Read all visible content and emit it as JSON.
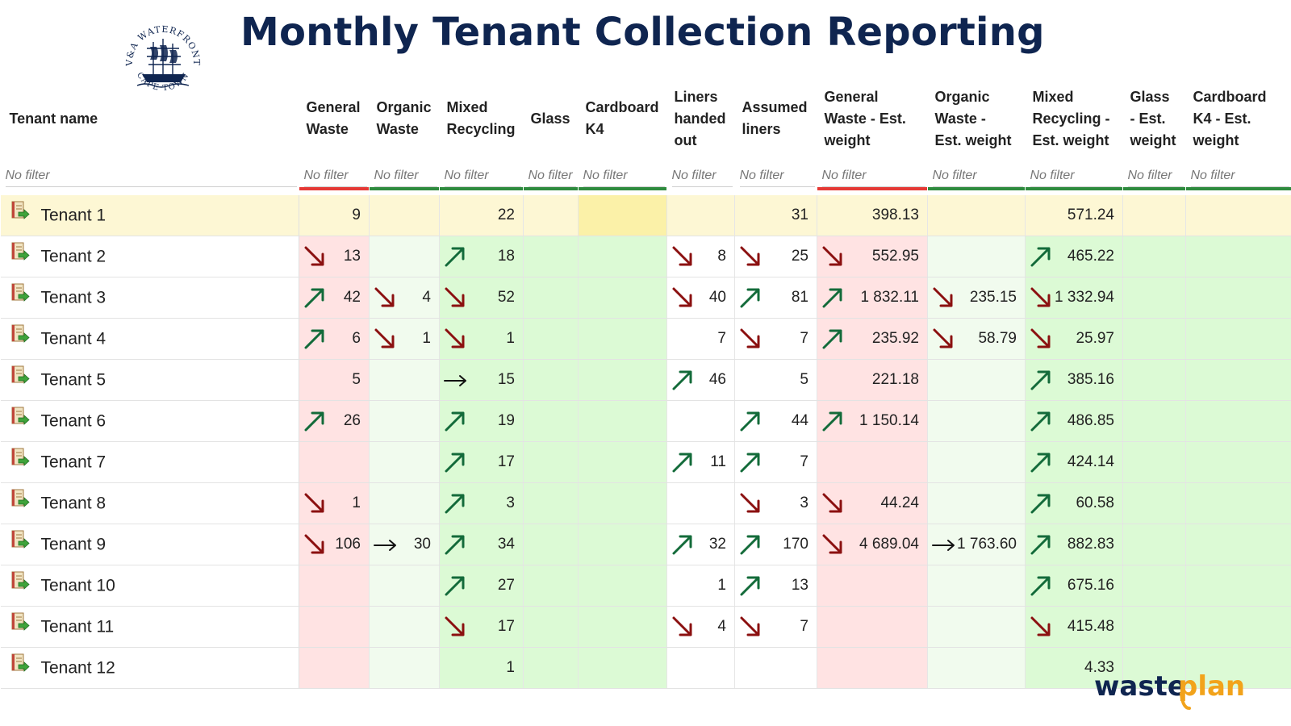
{
  "page": {
    "title": "Monthly Tenant Collection Reporting",
    "logo": {
      "text_top": "V&A WATERFRONT",
      "text_bottom": "CAPE TOWN",
      "icon": "ship-seal-icon",
      "color": "#0f2550"
    },
    "brand": {
      "part1": "waste",
      "part2": "plan",
      "color1": "#0f2550",
      "color2": "#f2a31b"
    }
  },
  "columns": [
    {
      "key": "name",
      "label": [
        "Tenant name"
      ],
      "placeholder": "No filter",
      "bar": "none",
      "bg": "white"
    },
    {
      "key": "gw",
      "label": [
        "General",
        "Waste"
      ],
      "placeholder": "No filter",
      "bar": "red",
      "bg": "red"
    },
    {
      "key": "ow",
      "label": [
        "Organic",
        "Waste"
      ],
      "placeholder": "No filter",
      "bar": "green",
      "bg": "lightgreen"
    },
    {
      "key": "mr",
      "label": [
        "Mixed",
        "Recycling"
      ],
      "placeholder": "No filter",
      "bar": "green",
      "bg": "green"
    },
    {
      "key": "gl",
      "label": [
        "Glass"
      ],
      "placeholder": "No filter",
      "bar": "green",
      "bg": "green"
    },
    {
      "key": "k4",
      "label": [
        "Cardboard",
        "K4"
      ],
      "placeholder": "No filter",
      "bar": "green",
      "bg": "green"
    },
    {
      "key": "lh",
      "label": [
        "Liners",
        "handed",
        "out"
      ],
      "placeholder": "No filter",
      "bar": "none",
      "bg": "white"
    },
    {
      "key": "al",
      "label": [
        "Assumed",
        "liners"
      ],
      "placeholder": "No filter",
      "bar": "none",
      "bg": "white"
    },
    {
      "key": "gwe",
      "label": [
        "General",
        "Waste - Est.",
        "weight"
      ],
      "placeholder": "No filter",
      "bar": "red",
      "bg": "red"
    },
    {
      "key": "owe",
      "label": [
        "Organic",
        "Waste -",
        "Est. weight"
      ],
      "placeholder": "No filter",
      "bar": "green",
      "bg": "lightgreen"
    },
    {
      "key": "mre",
      "label": [
        "Mixed",
        "Recycling -",
        "Est. weight"
      ],
      "placeholder": "No filter",
      "bar": "green",
      "bg": "green"
    },
    {
      "key": "gle",
      "label": [
        "Glass",
        "- Est.",
        "weight"
      ],
      "placeholder": "No filter",
      "bar": "green",
      "bg": "green"
    },
    {
      "key": "k4e",
      "label": [
        "Cardboard",
        "K4 - Est.",
        "weight"
      ],
      "placeholder": "No filter",
      "bar": "green",
      "bg": "green"
    }
  ],
  "rows": [
    {
      "name": "Tenant 1",
      "highlight": true,
      "cells": {
        "gw": {
          "v": "9"
        },
        "mr": {
          "v": "22"
        },
        "al": {
          "v": "31"
        },
        "gwe": {
          "v": "398.13"
        },
        "mre": {
          "v": "571.24"
        }
      }
    },
    {
      "name": "Tenant 2",
      "cells": {
        "gw": {
          "v": "13",
          "t": "down"
        },
        "mr": {
          "v": "18",
          "t": "up"
        },
        "lh": {
          "v": "8",
          "t": "down"
        },
        "al": {
          "v": "25",
          "t": "down"
        },
        "gwe": {
          "v": "552.95",
          "t": "down"
        },
        "mre": {
          "v": "465.22",
          "t": "up"
        }
      }
    },
    {
      "name": "Tenant 3",
      "cells": {
        "gw": {
          "v": "42",
          "t": "up"
        },
        "ow": {
          "v": "4",
          "t": "down"
        },
        "mr": {
          "v": "52",
          "t": "down"
        },
        "lh": {
          "v": "40",
          "t": "down"
        },
        "al": {
          "v": "81",
          "t": "up"
        },
        "gwe": {
          "v": "1 832.11",
          "t": "up"
        },
        "owe": {
          "v": "235.15",
          "t": "down"
        },
        "mre": {
          "v": "1 332.94",
          "t": "down"
        }
      }
    },
    {
      "name": "Tenant 4",
      "cells": {
        "gw": {
          "v": "6",
          "t": "up"
        },
        "ow": {
          "v": "1",
          "t": "down"
        },
        "mr": {
          "v": "1",
          "t": "down"
        },
        "lh": {
          "v": "7"
        },
        "al": {
          "v": "7",
          "t": "down"
        },
        "gwe": {
          "v": "235.92",
          "t": "up"
        },
        "owe": {
          "v": "58.79",
          "t": "down"
        },
        "mre": {
          "v": "25.97",
          "t": "down"
        }
      }
    },
    {
      "name": "Tenant 5",
      "cells": {
        "gw": {
          "v": "5"
        },
        "mr": {
          "v": "15",
          "t": "flat"
        },
        "lh": {
          "v": "46",
          "t": "up"
        },
        "al": {
          "v": "5"
        },
        "gwe": {
          "v": "221.18"
        },
        "mre": {
          "v": "385.16",
          "t": "up"
        }
      }
    },
    {
      "name": "Tenant 6",
      "cells": {
        "gw": {
          "v": "26",
          "t": "up"
        },
        "mr": {
          "v": "19",
          "t": "up"
        },
        "al": {
          "v": "44",
          "t": "up"
        },
        "gwe": {
          "v": "1 150.14",
          "t": "up"
        },
        "mre": {
          "v": "486.85",
          "t": "up"
        }
      }
    },
    {
      "name": "Tenant 7",
      "cells": {
        "mr": {
          "v": "17",
          "t": "up"
        },
        "lh": {
          "v": "11",
          "t": "up"
        },
        "al": {
          "v": "7",
          "t": "up"
        },
        "mre": {
          "v": "424.14",
          "t": "up"
        }
      }
    },
    {
      "name": "Tenant 8",
      "cells": {
        "gw": {
          "v": "1",
          "t": "down"
        },
        "mr": {
          "v": "3",
          "t": "up"
        },
        "al": {
          "v": "3",
          "t": "down"
        },
        "gwe": {
          "v": "44.24",
          "t": "down"
        },
        "mre": {
          "v": "60.58",
          "t": "up"
        }
      }
    },
    {
      "name": "Tenant 9",
      "cells": {
        "gw": {
          "v": "106",
          "t": "down"
        },
        "ow": {
          "v": "30",
          "t": "flat"
        },
        "mr": {
          "v": "34",
          "t": "up"
        },
        "lh": {
          "v": "32",
          "t": "up"
        },
        "al": {
          "v": "170",
          "t": "up"
        },
        "gwe": {
          "v": "4 689.04",
          "t": "down"
        },
        "owe": {
          "v": "1 763.60",
          "t": "flat"
        },
        "mre": {
          "v": "882.83",
          "t": "up"
        }
      }
    },
    {
      "name": "Tenant 10",
      "cells": {
        "mr": {
          "v": "27",
          "t": "up"
        },
        "lh": {
          "v": "1"
        },
        "al": {
          "v": "13",
          "t": "up"
        },
        "mre": {
          "v": "675.16",
          "t": "up"
        }
      }
    },
    {
      "name": "Tenant 11",
      "cells": {
        "mr": {
          "v": "17",
          "t": "down"
        },
        "lh": {
          "v": "4",
          "t": "down"
        },
        "al": {
          "v": "7",
          "t": "down"
        },
        "mre": {
          "v": "415.48",
          "t": "down"
        }
      }
    },
    {
      "name": "Tenant 12",
      "cells": {
        "mr": {
          "v": "1"
        },
        "mre": {
          "v": "4.33"
        }
      }
    }
  ],
  "trend_colors": {
    "up": "#136b3a",
    "down": "#8b1010",
    "flat": "#111111"
  },
  "icons": {
    "row": "tenant-record-icon"
  }
}
